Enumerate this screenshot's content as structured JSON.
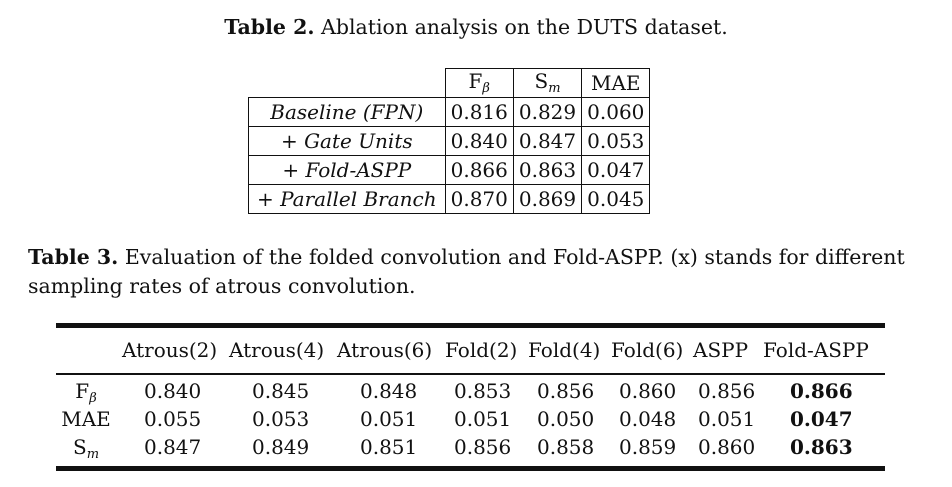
{
  "table2": {
    "caption_label": "Table 2.",
    "caption_text": "Ablation analysis on the DUTS dataset.",
    "columns": [
      {
        "main": "F",
        "sub": "β"
      },
      {
        "main": "S",
        "sub": "m"
      },
      {
        "main": "MAE",
        "sub": ""
      }
    ],
    "rows": [
      {
        "label": "Baseline (FPN)",
        "values": [
          "0.816",
          "0.829",
          "0.060"
        ]
      },
      {
        "label": "+ Gate Units",
        "values": [
          "0.840",
          "0.847",
          "0.053"
        ]
      },
      {
        "label": "+ Fold-ASPP",
        "values": [
          "0.866",
          "0.863",
          "0.047"
        ]
      },
      {
        "label": "+ Parallel Branch",
        "values": [
          "0.870",
          "0.869",
          "0.045"
        ]
      }
    ]
  },
  "table3": {
    "caption_label": "Table 3.",
    "caption_text": "Evaluation of the folded convolution and Fold-ASPP. (x) stands for different sampling rates of atrous convolution.",
    "columns": [
      "Atrous(2)",
      "Atrous(4)",
      "Atrous(6)",
      "Fold(2)",
      "Fold(4)",
      "Fold(6)",
      "ASPP",
      "Fold-ASPP"
    ],
    "rows": [
      {
        "label": {
          "main": "F",
          "sub": "β"
        },
        "values": [
          "0.840",
          "0.845",
          "0.848",
          "0.853",
          "0.856",
          "0.860",
          "0.856",
          "0.866"
        ]
      },
      {
        "label": {
          "main": "MAE",
          "sub": ""
        },
        "values": [
          "0.055",
          "0.053",
          "0.051",
          "0.051",
          "0.050",
          "0.048",
          "0.051",
          "0.047"
        ]
      },
      {
        "label": {
          "main": "S",
          "sub": "m"
        },
        "values": [
          "0.847",
          "0.849",
          "0.851",
          "0.856",
          "0.858",
          "0.859",
          "0.860",
          "0.863"
        ]
      }
    ]
  }
}
